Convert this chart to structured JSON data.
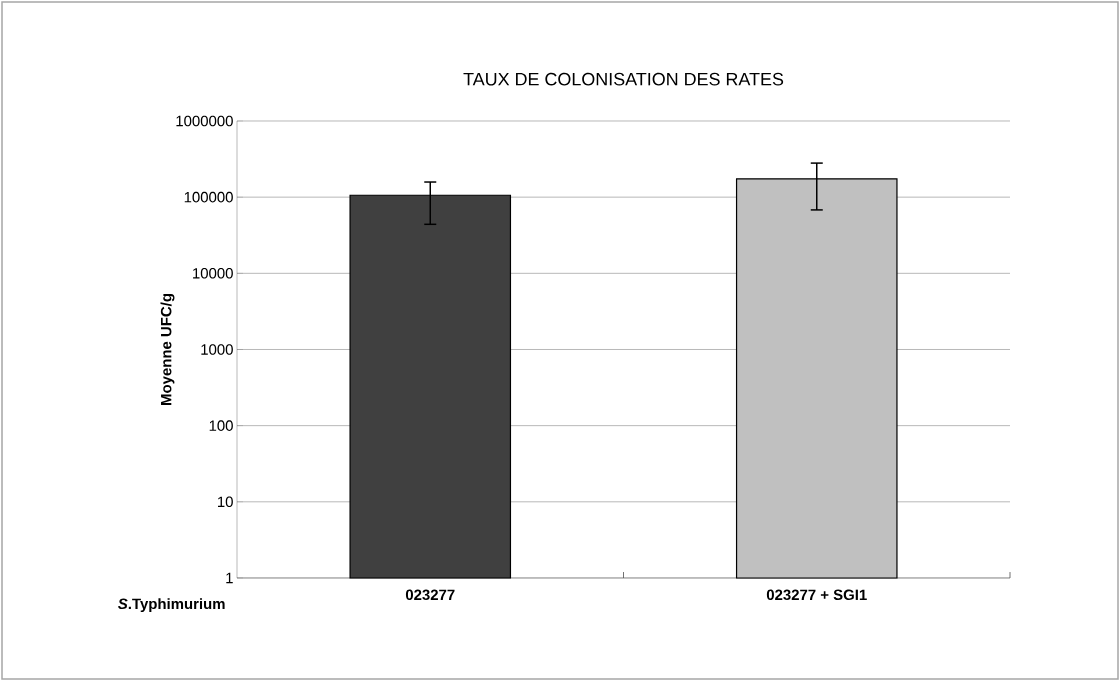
{
  "chart_data": {
    "type": "bar",
    "title": "TAUX DE COLONISATION DES RATES",
    "ylabel": "Moyenne UFC/g",
    "xlabel": "*S*.Typhimurium",
    "categories": [
      "023277",
      "023277 + SGI1"
    ],
    "values": [
      106000,
      174000
    ],
    "colors": [
      "#404040",
      "#c0c0c0"
    ],
    "errors": [
      [
        44000,
        158000
      ],
      [
        68000,
        280000
      ]
    ],
    "log": "y",
    "ylim": [
      1,
      1000000
    ],
    "yticks": [
      1,
      10,
      100,
      1000,
      10000,
      100000,
      1000000
    ],
    "grid": "y"
  }
}
